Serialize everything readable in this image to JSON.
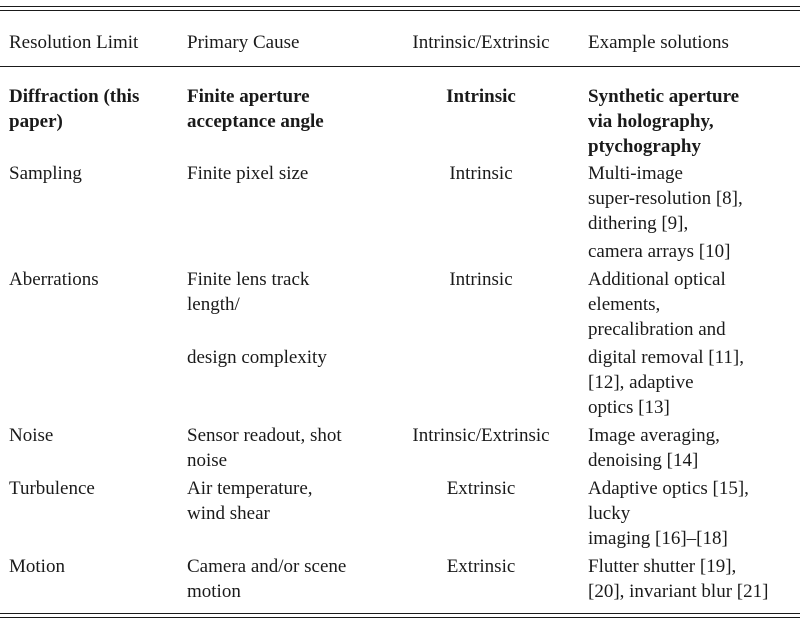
{
  "header": {
    "col1": "Resolution Limit",
    "col2": "Primary Cause",
    "col3": "Intrinsic/Extrinsic",
    "col4": "Example solutions"
  },
  "rows": [
    {
      "limit": [
        "Diffraction (this",
        "paper)"
      ],
      "cause": [
        "Finite aperture",
        "acceptance angle"
      ],
      "type": "Intrinsic",
      "solutions": [
        "Synthetic aperture",
        "via holography,",
        "ptychography"
      ]
    },
    {
      "limit": [
        "Sampling"
      ],
      "cause": [
        "Finite pixel size"
      ],
      "type": "Intrinsic",
      "solutions": [
        "Multi-image",
        "super-resolution [8],",
        "dithering [9],",
        "camera arrays [10]"
      ]
    },
    {
      "limit": [
        "Aberrations"
      ],
      "cause": [
        "Finite lens track",
        "length/",
        "design complexity"
      ],
      "type": "Intrinsic",
      "solutions": [
        "Additional optical",
        "elements,",
        "precalibration and",
        "digital removal [11],",
        "[12], adaptive",
        "optics [13]"
      ]
    },
    {
      "limit": [
        "Noise"
      ],
      "cause": [
        "Sensor readout, shot",
        "noise"
      ],
      "type": "Intrinsic/Extrinsic",
      "solutions": [
        "Image averaging,",
        "denoising [14]"
      ]
    },
    {
      "limit": [
        "Turbulence"
      ],
      "cause": [
        "Air temperature,",
        "wind shear"
      ],
      "type": "Extrinsic",
      "solutions": [
        "Adaptive optics [15],",
        "lucky",
        "imaging [16]–[18]"
      ]
    },
    {
      "limit": [
        "Motion"
      ],
      "cause": [
        "Camera and/or scene",
        "motion"
      ],
      "type": "Extrinsic",
      "solutions": [
        "Flutter shutter [19],",
        "[20], invariant blur [21]"
      ]
    }
  ]
}
